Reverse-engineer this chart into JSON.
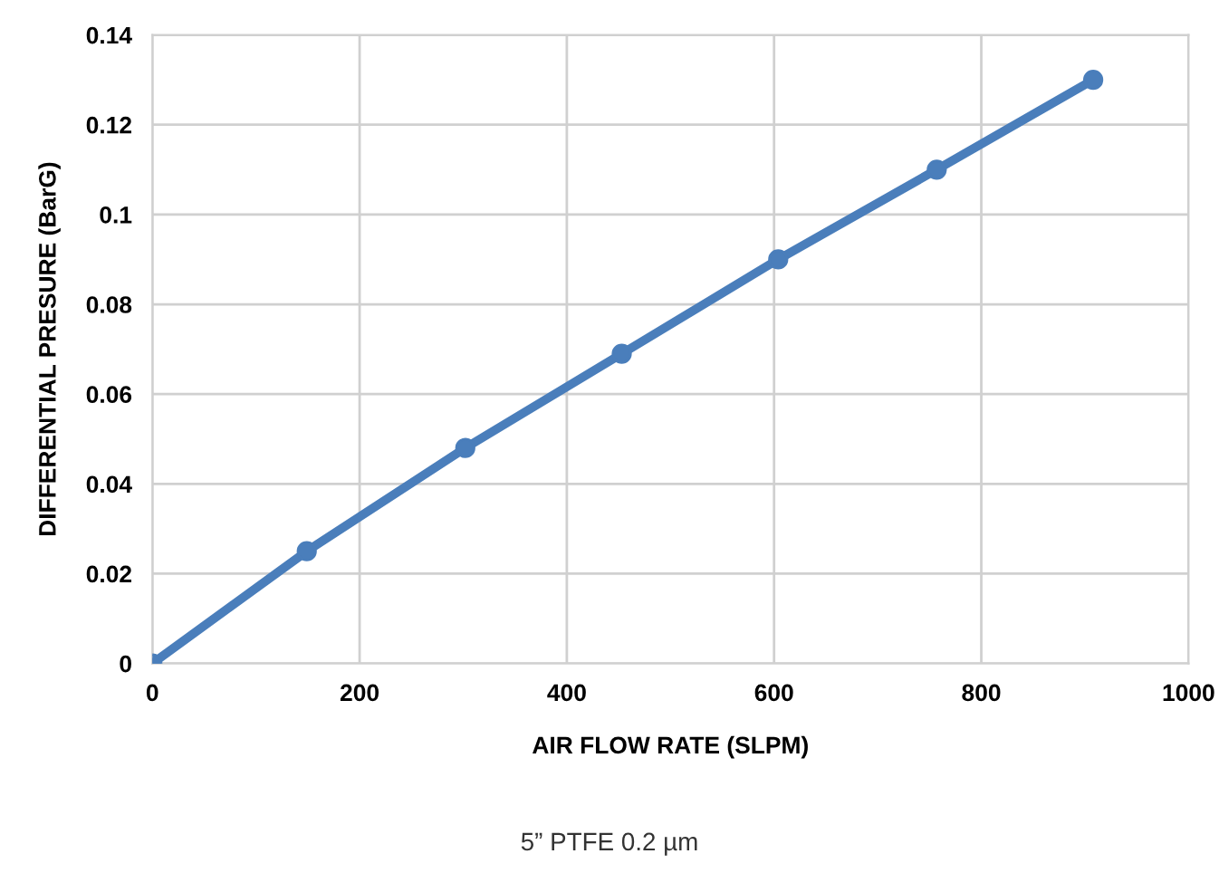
{
  "chart_data": {
    "type": "line",
    "xlabel": "AIR FLOW RATE (SLPM)",
    "ylabel": "DIFFERENTIAL PRESURE (BarG)",
    "annotations": [
      "5” PTFE 0.2 µm"
    ],
    "series": [
      {
        "color": "#4a7ebb",
        "x": [
          0,
          149,
          302,
          453,
          604,
          757,
          908
        ],
        "values": [
          0,
          0.025,
          0.048,
          0.069,
          0.09,
          0.11,
          0.13
        ]
      }
    ],
    "xlim": [
      0,
      1000
    ],
    "xticks": [
      0,
      200,
      400,
      600,
      800,
      1000
    ],
    "ylim": [
      0,
      0.14
    ],
    "yticks": [
      {
        "value": 0,
        "label": "0"
      },
      0.02,
      0.04,
      0.06,
      0.08,
      {
        "value": 0.1,
        "label": "0.1"
      },
      0.12,
      0.14
    ],
    "grid": true,
    "marker": "circle",
    "line_style": "solid"
  }
}
